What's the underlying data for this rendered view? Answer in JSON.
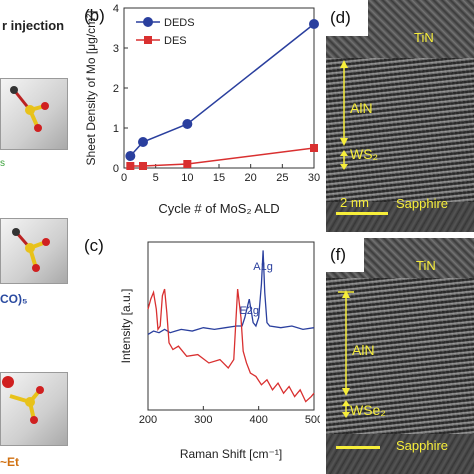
{
  "left_panel": {
    "title": "r injection",
    "green_label": "s",
    "co_label": "CO)₅",
    "et_label": "~Et"
  },
  "panel_b": {
    "label": "(b)",
    "chart_data": {
      "type": "line",
      "xlabel": "Cycle # of MoS₂ ALD",
      "ylabel": "Sheet Density of Mo [μg/cm²]",
      "xlim": [
        0,
        30
      ],
      "ylim": [
        0,
        4
      ],
      "xticks": [
        "0",
        "5",
        "10",
        "15",
        "20",
        "25",
        "30"
      ],
      "yticks": [
        "0",
        "1",
        "2",
        "3",
        "4"
      ],
      "legend_position": "top-left",
      "series": [
        {
          "name": "DEDS",
          "color": "#2a3f9e",
          "marker": "circle",
          "x": [
            1,
            3,
            10,
            30
          ],
          "y": [
            0.3,
            0.65,
            1.1,
            3.6
          ]
        },
        {
          "name": "DES",
          "color": "#d93030",
          "marker": "square",
          "x": [
            1,
            3,
            10,
            30
          ],
          "y": [
            0.05,
            0.05,
            0.1,
            0.5
          ]
        }
      ]
    }
  },
  "panel_c": {
    "label": "(c)",
    "chart_data": {
      "type": "line",
      "xlabel": "Raman Shift [cm⁻¹]",
      "ylabel": "Intensity [a.u.]",
      "xlim": [
        200,
        500
      ],
      "xticks": [
        "200",
        "300",
        "400",
        "500"
      ],
      "annotations": [
        {
          "text": "A1g",
          "x": 408
        },
        {
          "text": "E2g",
          "x": 383
        }
      ],
      "series": [
        {
          "name": "",
          "color": "#2a3f9e",
          "x": [
            200,
            210,
            220,
            230,
            240,
            250,
            260,
            280,
            300,
            320,
            340,
            360,
            370,
            375,
            380,
            383,
            386,
            390,
            395,
            400,
            405,
            408,
            411,
            415,
            420,
            440,
            460,
            480,
            500
          ],
          "y": [
            0.45,
            0.47,
            0.46,
            0.48,
            0.46,
            0.47,
            0.48,
            0.47,
            0.49,
            0.48,
            0.49,
            0.5,
            0.5,
            0.55,
            0.62,
            0.66,
            0.6,
            0.52,
            0.5,
            0.55,
            0.75,
            0.95,
            0.7,
            0.52,
            0.5,
            0.49,
            0.5,
            0.48,
            0.49
          ]
        },
        {
          "name": "",
          "color": "#d93030",
          "x": [
            200,
            205,
            210,
            215,
            218,
            222,
            226,
            230,
            234,
            238,
            245,
            255,
            270,
            290,
            310,
            330,
            345,
            355,
            362,
            368,
            372,
            378,
            385,
            395,
            405,
            415,
            425,
            435,
            445,
            455,
            465,
            475,
            485,
            495,
            500
          ],
          "y": [
            0.6,
            0.66,
            0.7,
            0.6,
            0.48,
            0.5,
            0.68,
            0.72,
            0.58,
            0.4,
            0.36,
            0.38,
            0.32,
            0.33,
            0.28,
            0.3,
            0.25,
            0.3,
            0.72,
            0.55,
            0.35,
            0.28,
            0.22,
            0.2,
            0.15,
            0.18,
            0.12,
            0.16,
            0.1,
            0.14,
            0.08,
            0.12,
            0.05,
            0.08,
            0.1
          ]
        }
      ]
    }
  },
  "panel_d": {
    "label": "(d)",
    "tin": "TiN",
    "aln": "AlN",
    "ws2": "WS₂",
    "scale": "2 nm",
    "sapphire": "Sapphire"
  },
  "panel_f": {
    "label": "(f)",
    "tin": "TiN",
    "aln": "AlN",
    "wse2": "WSe₂",
    "sapphire": "Sapphire"
  },
  "colors": {
    "yellow": "#f7ee3a",
    "deds": "#2a3f9e",
    "des": "#d93030"
  }
}
